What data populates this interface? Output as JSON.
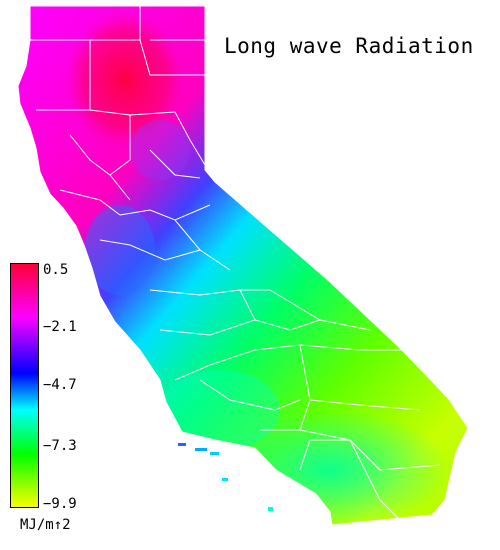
{
  "map": {
    "title": "Long wave Radiation",
    "colorbar": {
      "ticks": [
        "0.5",
        "−2.1",
        "−4.7",
        "−7.3",
        "−9.9"
      ],
      "unit": "MJ/m↑2",
      "colors": [
        "#ff0033",
        "#ff00ff",
        "#0000ff",
        "#00ffff",
        "#00ff00",
        "#ffff00"
      ]
    }
  }
}
